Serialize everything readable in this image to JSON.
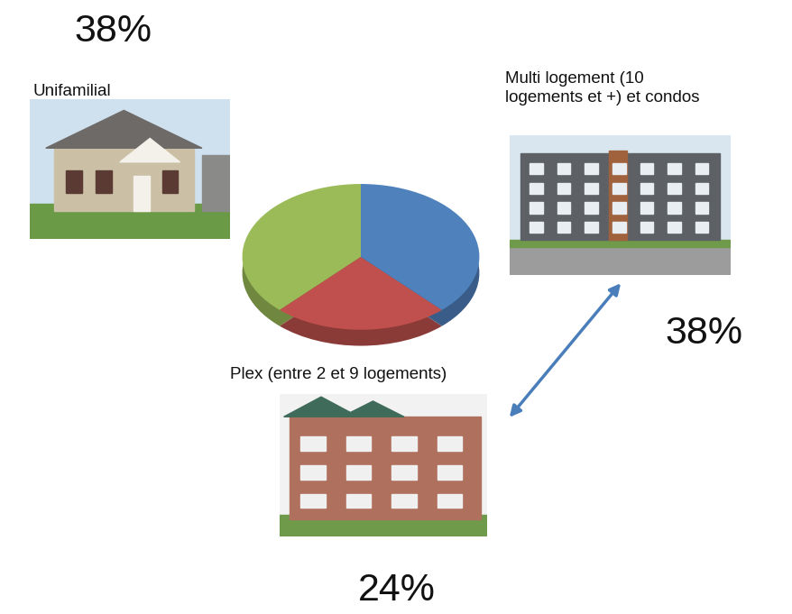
{
  "chart_data": {
    "type": "pie",
    "categories": [
      "Unifamilial",
      "Plex (entre 2 et 9 logements)",
      "Multi logement (10\nlogements et +) et condos"
    ],
    "values": [
      38,
      24,
      38
    ],
    "value_labels": [
      "38%",
      "24%",
      "38%"
    ],
    "colors": [
      "#9bbb59",
      "#c0504d",
      "#4f81bd"
    ]
  }
}
